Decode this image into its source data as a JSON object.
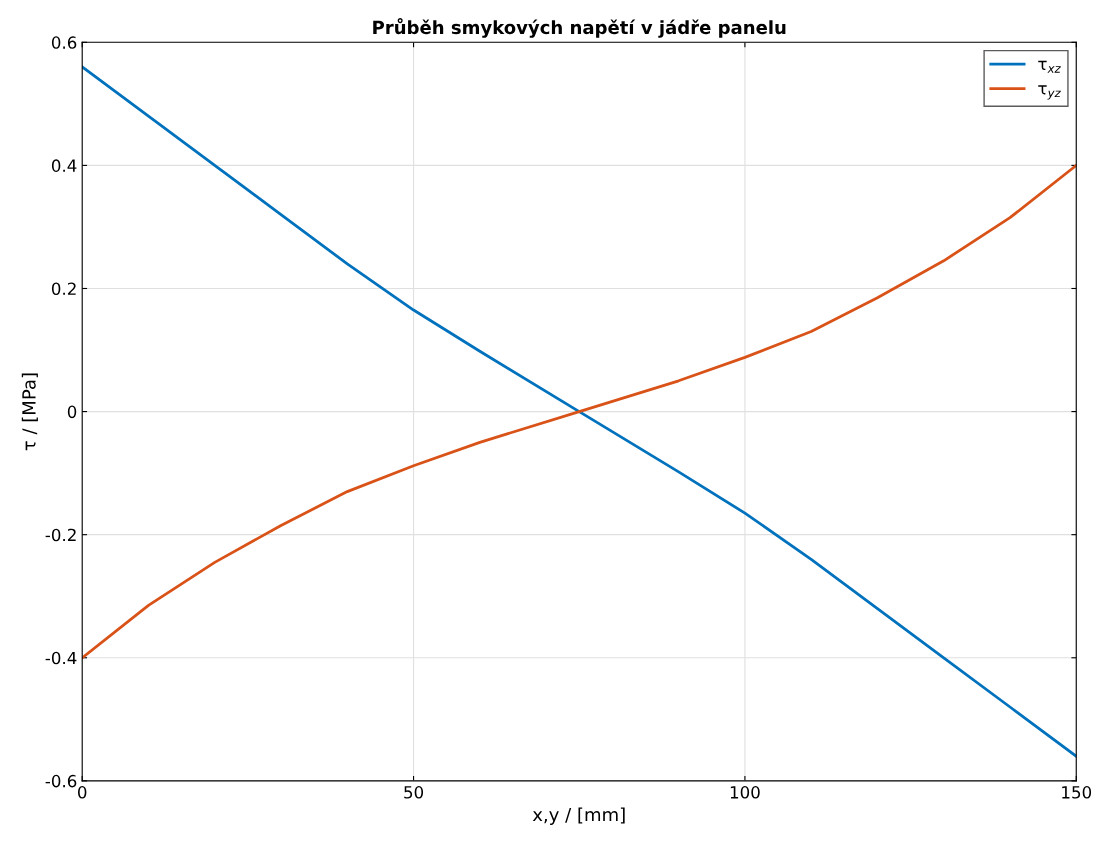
{
  "chart_data": {
    "type": "line",
    "title": "Průběh smykových napětí v jádře panelu",
    "xlabel": "x,y / [mm]",
    "ylabel": "τ / [MPa]",
    "x": [
      0,
      10,
      20,
      30,
      40,
      50,
      60,
      75,
      90,
      100,
      110,
      120,
      130,
      140,
      150
    ],
    "series": [
      {
        "name": "τ$_{xz}$",
        "color": "#0072bd",
        "values": [
          0.56,
          0.48,
          0.4,
          0.32,
          0.24,
          0.165,
          0.098,
          0,
          -0.098,
          -0.165,
          -0.24,
          -0.32,
          -0.4,
          -0.48,
          -0.56
        ]
      },
      {
        "name": "τ$_{yz}$",
        "color": "#d95319",
        "values": [
          -0.4,
          -0.315,
          -0.245,
          -0.185,
          -0.13,
          -0.088,
          -0.05,
          0,
          0.05,
          0.088,
          0.13,
          0.185,
          0.245,
          0.315,
          0.4
        ]
      }
    ],
    "xlim": [
      0,
      150
    ],
    "xticks": [
      0,
      50,
      100,
      150
    ],
    "ylim": [
      -0.6,
      0.6
    ],
    "yticks": [
      {
        "value": -0.6,
        "label": "-0.6"
      },
      {
        "value": -0.4,
        "label": "-0.4"
      },
      {
        "value": -0.2,
        "label": "-0.2"
      },
      0,
      0.2,
      0.4,
      0.6
    ],
    "grid": true,
    "legend": "top right",
    "marker": "none",
    "line_style": "solid"
  }
}
